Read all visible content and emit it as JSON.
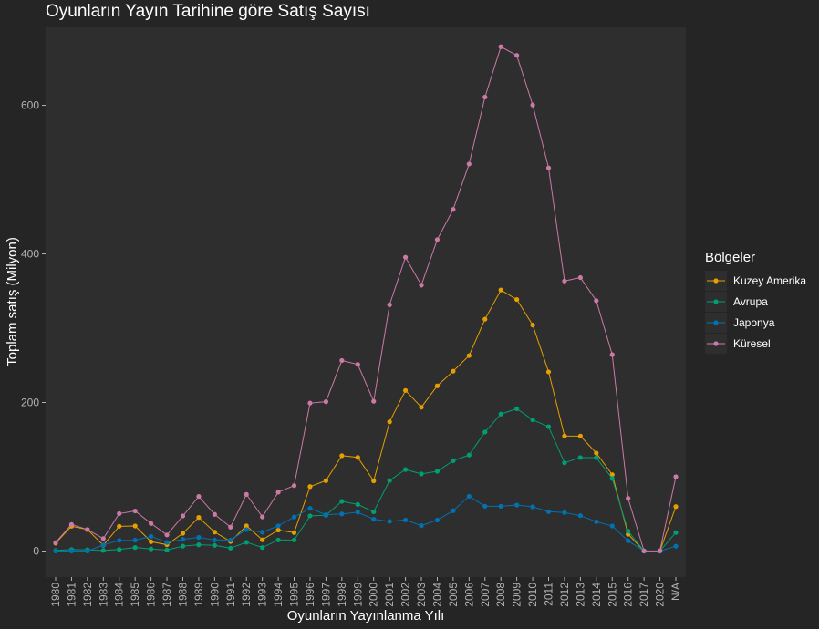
{
  "chart_data": {
    "type": "line",
    "title": "Oyunların Yayın Tarihine göre Satış Sayısı",
    "xlabel": "Oyunların Yayınlanma Yılı",
    "ylabel": "Toplam satış (Milyon)",
    "ylim": [
      -35,
      705
    ],
    "yticks": [
      0,
      200,
      400,
      600
    ],
    "grid": false,
    "legend_title": "Bölgeler",
    "legend_position": "right",
    "categories": [
      "1980",
      "1981",
      "1982",
      "1983",
      "1984",
      "1985",
      "1986",
      "1987",
      "1988",
      "1989",
      "1990",
      "1991",
      "1992",
      "1993",
      "1994",
      "1995",
      "1996",
      "1997",
      "1998",
      "1999",
      "2000",
      "2001",
      "2002",
      "2003",
      "2004",
      "2005",
      "2006",
      "2007",
      "2008",
      "2009",
      "2010",
      "2011",
      "2012",
      "2013",
      "2014",
      "2015",
      "2016",
      "2017",
      "2020",
      "N/A"
    ],
    "series": [
      {
        "name": "Kuzey Amerika",
        "color": "#E69F00",
        "values": [
          10.6,
          33.4,
          28.9,
          7.8,
          33.3,
          33.7,
          12.5,
          8.5,
          23.9,
          45.2,
          25.5,
          12.8,
          33.9,
          15.1,
          28.2,
          24.8,
          86.8,
          94.8,
          128.4,
          126.1,
          94.5,
          173.9,
          216.2,
          193.6,
          222.4,
          242.1,
          263.1,
          312.1,
          351.4,
          338.6,
          304.2,
          241.2,
          154.9,
          154.8,
          131.9,
          102.8,
          22.7,
          0,
          0,
          59.8
        ]
      },
      {
        "name": "Avrupa",
        "color": "#009E73",
        "values": [
          0.7,
          2.0,
          1.7,
          0.8,
          2.1,
          4.7,
          2.8,
          1.4,
          6.6,
          8.4,
          7.6,
          3.9,
          11.7,
          4.7,
          14.9,
          14.9,
          47.3,
          48.3,
          66.9,
          62.7,
          52.8,
          94.9,
          109.7,
          103.8,
          107.3,
          121.6,
          129.2,
          160.2,
          184.4,
          191.6,
          176.6,
          167.4,
          118.8,
          125.8,
          125.7,
          97.7,
          26.8,
          0,
          0,
          24.9
        ]
      },
      {
        "name": "Japonya",
        "color": "#0072B2",
        "values": [
          0,
          0,
          0,
          8.1,
          14.3,
          14.6,
          19.8,
          11.6,
          15.8,
          18.4,
          14.9,
          14.8,
          28.9,
          25.3,
          33.9,
          45.8,
          57.4,
          48.9,
          50.0,
          52.3,
          42.8,
          39.9,
          41.8,
          34.2,
          41.7,
          54.3,
          73.7,
          60.3,
          60.3,
          61.9,
          59.5,
          53.0,
          51.8,
          47.6,
          39.5,
          33.7,
          13.7,
          0,
          0,
          6.5
        ]
      },
      {
        "name": "Küresel",
        "color": "#CC79A7",
        "values": [
          11.4,
          35.8,
          28.9,
          16.8,
          50.4,
          53.9,
          37.1,
          21.7,
          47.2,
          73.5,
          49.4,
          32.2,
          76.2,
          46.0,
          79.2,
          88.1,
          199.2,
          201.1,
          256.5,
          251.3,
          201.6,
          331.5,
          395.5,
          357.9,
          419.3,
          459.9,
          521.0,
          611.1,
          678.9,
          667.3,
          600.5,
          515.8,
          363.5,
          368.1,
          337.0,
          264.4,
          70.9,
          0.1,
          0.3,
          100.0
        ]
      }
    ]
  }
}
